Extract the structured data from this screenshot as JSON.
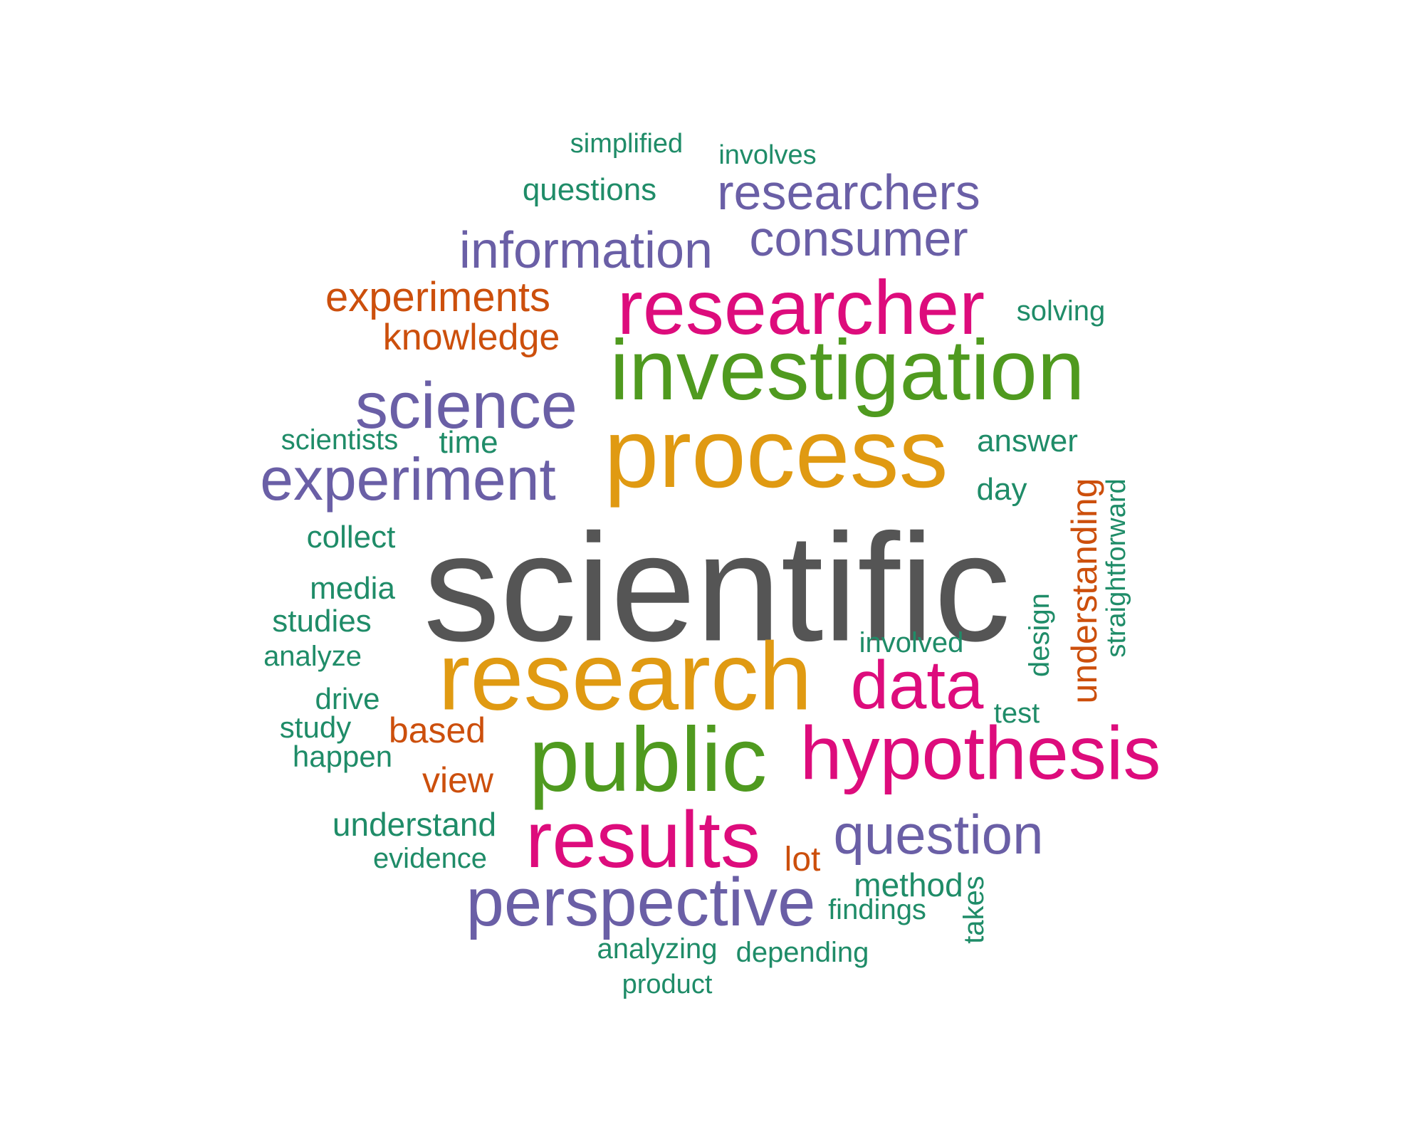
{
  "palette": {
    "gray": "#555555",
    "orange": "#e09a12",
    "green": "#4f9a1f",
    "magenta": "#dd0c7c",
    "purple": "#6a5fa6",
    "rust": "#cc4f0c",
    "teal": "#1f8c68"
  },
  "words": [
    {
      "key": "simplified",
      "text": "simplified",
      "color": "teal"
    },
    {
      "key": "involves",
      "text": "involves",
      "color": "teal"
    },
    {
      "key": "questions",
      "text": "questions",
      "color": "teal"
    },
    {
      "key": "researchers",
      "text": "researchers",
      "color": "purple"
    },
    {
      "key": "information",
      "text": "information",
      "color": "purple"
    },
    {
      "key": "consumer",
      "text": "consumer",
      "color": "purple"
    },
    {
      "key": "experiments",
      "text": "experiments",
      "color": "rust"
    },
    {
      "key": "researcher",
      "text": "researcher",
      "color": "magenta"
    },
    {
      "key": "solving",
      "text": "solving",
      "color": "teal"
    },
    {
      "key": "knowledge",
      "text": "knowledge",
      "color": "rust"
    },
    {
      "key": "investigation",
      "text": "investigation",
      "color": "green"
    },
    {
      "key": "science",
      "text": "science",
      "color": "purple"
    },
    {
      "key": "scientists",
      "text": "scientists",
      "color": "teal"
    },
    {
      "key": "time",
      "text": "time",
      "color": "teal"
    },
    {
      "key": "process",
      "text": "process",
      "color": "orange"
    },
    {
      "key": "answer",
      "text": "answer",
      "color": "teal"
    },
    {
      "key": "experiment",
      "text": "experiment",
      "color": "purple"
    },
    {
      "key": "day",
      "text": "day",
      "color": "teal"
    },
    {
      "key": "understanding",
      "text": "understanding",
      "color": "rust"
    },
    {
      "key": "straightforward",
      "text": "straightforward",
      "color": "teal"
    },
    {
      "key": "collect",
      "text": "collect",
      "color": "teal"
    },
    {
      "key": "scientific",
      "text": "scientific",
      "color": "gray"
    },
    {
      "key": "media",
      "text": "media",
      "color": "teal"
    },
    {
      "key": "studies",
      "text": "studies",
      "color": "teal"
    },
    {
      "key": "design",
      "text": "design",
      "color": "teal"
    },
    {
      "key": "involved",
      "text": "involved",
      "color": "teal"
    },
    {
      "key": "analyze",
      "text": "analyze",
      "color": "teal"
    },
    {
      "key": "research",
      "text": "research",
      "color": "orange"
    },
    {
      "key": "data",
      "text": "data",
      "color": "magenta"
    },
    {
      "key": "drive",
      "text": "drive",
      "color": "teal"
    },
    {
      "key": "test",
      "text": "test",
      "color": "teal"
    },
    {
      "key": "study",
      "text": "study",
      "color": "teal"
    },
    {
      "key": "based",
      "text": "based",
      "color": "rust"
    },
    {
      "key": "public",
      "text": "public",
      "color": "green"
    },
    {
      "key": "hypothesis",
      "text": "hypothesis",
      "color": "magenta"
    },
    {
      "key": "happen",
      "text": "happen",
      "color": "teal"
    },
    {
      "key": "view",
      "text": "view",
      "color": "rust"
    },
    {
      "key": "understand",
      "text": "understand",
      "color": "teal"
    },
    {
      "key": "results",
      "text": "results",
      "color": "magenta"
    },
    {
      "key": "question",
      "text": "question",
      "color": "purple"
    },
    {
      "key": "evidence",
      "text": "evidence",
      "color": "teal"
    },
    {
      "key": "lot",
      "text": "lot",
      "color": "rust"
    },
    {
      "key": "method",
      "text": "method",
      "color": "teal"
    },
    {
      "key": "perspective",
      "text": "perspective",
      "color": "purple"
    },
    {
      "key": "findings",
      "text": "findings",
      "color": "teal"
    },
    {
      "key": "takes",
      "text": "takes",
      "color": "teal"
    },
    {
      "key": "analyzing",
      "text": "analyzing",
      "color": "teal"
    },
    {
      "key": "depending",
      "text": "depending",
      "color": "teal"
    },
    {
      "key": "product",
      "text": "product",
      "color": "teal"
    }
  ]
}
